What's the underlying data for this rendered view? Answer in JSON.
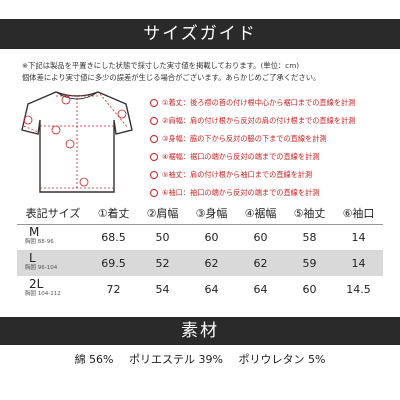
{
  "header": {
    "title": "サイズガイド"
  },
  "notes": [
    "※下記は製品を平置きにした状態で採寸した実寸値を掲載しております。(単位：cm)",
    "個体差により実寸値に多少の誤差が生じる場合がございます。あらかじめご了承ください。"
  ],
  "legend": [
    "①着丈：後ろ襟の首の付け根中心から裾口までの直線を計測",
    "②肩幅：肩の付け根から反対の肩の付け根までの直線を計測",
    "③身幅：脇の下から反対の脇の下までの直線を計測",
    "④裾幅：裾口の端から反対の端までの直線を計測",
    "⑤袖丈：肩の付け根から袖口までの直線を計測",
    "⑥袖口：袖口の端から反対の端までの直線を計測"
  ],
  "colors": {
    "banner": "#2a2a2a",
    "accent": "#cc2222",
    "shade": "#d9d9d9"
  },
  "table": {
    "headers": [
      "表記サイズ",
      "①着丈",
      "②肩幅",
      "③身幅",
      "④裾幅",
      "⑤袖丈",
      "⑥袖口"
    ],
    "rows": [
      {
        "size": "M",
        "sub": "胸囲 88-96",
        "values": [
          "68.5",
          "50",
          "60",
          "60",
          "58",
          "14"
        ]
      },
      {
        "size": "L",
        "sub": "胸囲 96-104",
        "values": [
          "69.5",
          "52",
          "62",
          "62",
          "59",
          "14"
        ]
      },
      {
        "size": "2L",
        "sub": "胸囲 104-112",
        "values": [
          "72",
          "54",
          "64",
          "64",
          "60",
          "14.5"
        ]
      }
    ]
  },
  "material": {
    "title": "素材",
    "items": [
      "綿 56%",
      "ポリエステル 39%",
      "ポリウレタン 5%"
    ]
  }
}
